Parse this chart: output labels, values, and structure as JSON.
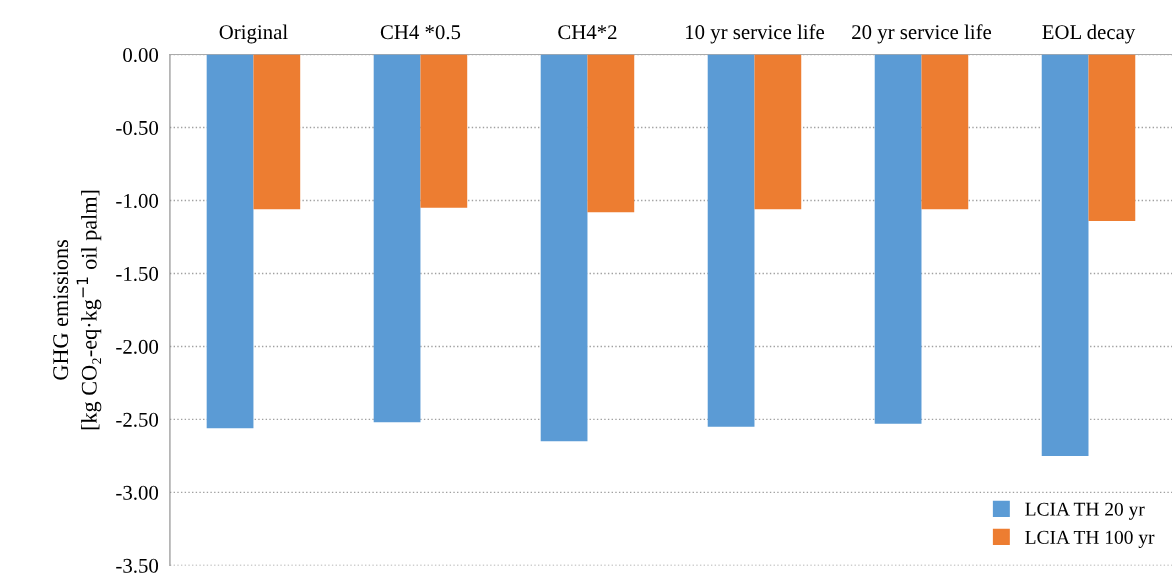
{
  "chart_data": {
    "type": "bar",
    "ylabel": "GHG emissions\n[kg CO₂-eq·kg$^{−1}$ oil palm]",
    "categories": [
      "Original",
      "CH4 *0.5",
      "CH4*2",
      "10 yr service life",
      "20 yr service life",
      "EOL decay"
    ],
    "series": [
      {
        "name": "LCIA TH 20 yr",
        "color": "#5b9bd5",
        "values": [
          -2.56,
          -2.52,
          -2.65,
          -2.55,
          -2.53,
          -2.75
        ]
      },
      {
        "name": "LCIA TH 100 yr",
        "color": "#ed7d31",
        "values": [
          -1.06,
          -1.05,
          -1.08,
          -1.06,
          -1.06,
          -1.14
        ]
      }
    ],
    "ylim": [
      -3.5,
      0
    ],
    "yticks": [
      {
        "value": 0,
        "label": "0.00"
      },
      {
        "value": -0.5,
        "label": "-0.50"
      },
      {
        "value": -1,
        "label": "-1.00"
      },
      {
        "value": -1.5,
        "label": "-1.50"
      },
      {
        "value": -2,
        "label": "-2.00"
      },
      {
        "value": -2.5,
        "label": "-2.50"
      },
      {
        "value": -3,
        "label": "-3.00"
      },
      {
        "value": -3.5,
        "label": "-3.50"
      }
    ],
    "grid": "y",
    "legend": "bottom right"
  }
}
